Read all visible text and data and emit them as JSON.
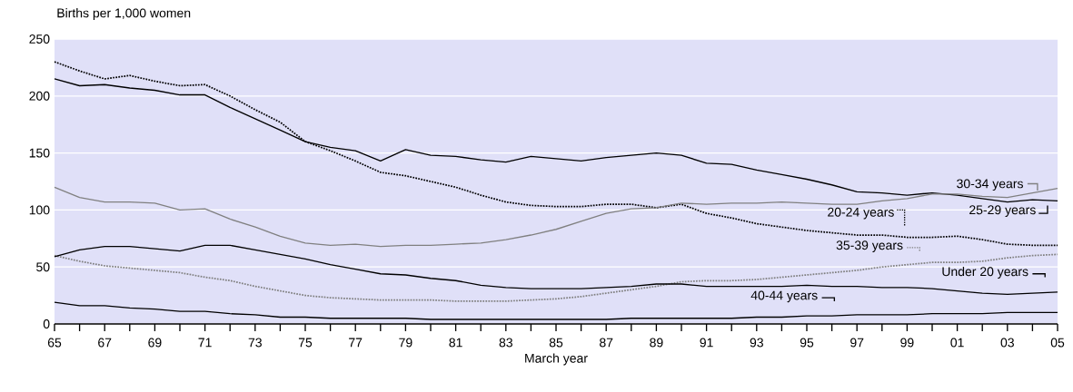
{
  "chart_data": {
    "type": "line",
    "ylabel": "Births per 1,000 women",
    "xlabel": "March year",
    "x": [
      1965,
      1966,
      1967,
      1968,
      1969,
      1970,
      1971,
      1972,
      1973,
      1974,
      1975,
      1976,
      1977,
      1978,
      1979,
      1980,
      1981,
      1982,
      1983,
      1984,
      1985,
      1986,
      1987,
      1988,
      1989,
      1990,
      1991,
      1992,
      1993,
      1994,
      1995,
      1996,
      1997,
      1998,
      1999,
      2000,
      2001,
      2002,
      2003,
      2004,
      2005
    ],
    "series": [
      {
        "name": "20-24 years",
        "color": "#000000",
        "line_style": "dotted",
        "values": [
          230,
          222,
          215,
          218,
          213,
          209,
          210,
          200,
          188,
          177,
          160,
          152,
          143,
          133,
          130,
          125,
          120,
          113,
          107,
          104,
          103,
          103,
          105,
          105,
          102,
          105,
          97,
          93,
          88,
          85,
          82,
          80,
          78,
          78,
          76,
          76,
          77,
          74,
          70,
          69,
          69
        ]
      },
      {
        "name": "25-29 years",
        "color": "#000000",
        "line_style": "solid",
        "values": [
          215,
          209,
          210,
          207,
          205,
          201,
          201,
          190,
          180,
          170,
          160,
          155,
          152,
          143,
          153,
          148,
          147,
          144,
          142,
          147,
          145,
          143,
          146,
          148,
          150,
          148,
          141,
          140,
          135,
          131,
          127,
          122,
          116,
          115,
          113,
          115,
          113,
          110,
          107,
          109,
          108
        ]
      },
      {
        "name": "30-34 years",
        "color": "#808080",
        "line_style": "solid",
        "values": [
          120,
          111,
          107,
          107,
          106,
          100,
          101,
          92,
          85,
          77,
          71,
          69,
          70,
          68,
          69,
          69,
          70,
          71,
          74,
          78,
          83,
          90,
          97,
          101,
          102,
          106,
          105,
          106,
          106,
          107,
          106,
          105,
          105,
          108,
          110,
          114,
          114,
          112,
          111,
          115,
          119
        ]
      },
      {
        "name": "35-39 years",
        "color": "#808080",
        "line_style": "dotted",
        "values": [
          60,
          55,
          51,
          49,
          47,
          45,
          41,
          38,
          33,
          29,
          25,
          23,
          22,
          21,
          21,
          21,
          20,
          20,
          20,
          21,
          22,
          24,
          27,
          30,
          33,
          37,
          38,
          38,
          39,
          41,
          43,
          45,
          47,
          50,
          52,
          54,
          54,
          55,
          58,
          60,
          61
        ]
      },
      {
        "name": "Under 20 years",
        "color": "#000000",
        "line_style": "solid",
        "values": [
          59,
          65,
          68,
          68,
          66,
          64,
          69,
          69,
          65,
          61,
          57,
          52,
          48,
          44,
          43,
          40,
          38,
          34,
          32,
          31,
          31,
          31,
          32,
          33,
          35,
          35,
          33,
          33,
          33,
          33,
          34,
          33,
          33,
          32,
          32,
          31,
          29,
          27,
          26,
          27,
          28
        ]
      },
      {
        "name": "40-44 years",
        "color": "#000000",
        "line_style": "solid",
        "values": [
          19,
          16,
          16,
          14,
          13,
          11,
          11,
          9,
          8,
          6,
          6,
          5,
          5,
          5,
          5,
          4,
          4,
          4,
          4,
          4,
          4,
          4,
          4,
          5,
          5,
          5,
          5,
          5,
          6,
          6,
          7,
          7,
          8,
          8,
          8,
          9,
          9,
          9,
          10,
          10,
          10
        ]
      }
    ],
    "xlim": [
      1965,
      2005
    ],
    "ylim": [
      0,
      250
    ],
    "yticks": [
      0,
      50,
      100,
      150,
      200,
      250
    ],
    "xticks": [
      {
        "value": 1965,
        "label": "65"
      },
      {
        "value": 1966,
        "label": null
      },
      {
        "value": 1967,
        "label": "67"
      },
      {
        "value": 1968,
        "label": null
      },
      {
        "value": 1969,
        "label": "69"
      },
      {
        "value": 1970,
        "label": null
      },
      {
        "value": 1971,
        "label": "71"
      },
      {
        "value": 1972,
        "label": null
      },
      {
        "value": 1973,
        "label": "73"
      },
      {
        "value": 1974,
        "label": null
      },
      {
        "value": 1975,
        "label": "75"
      },
      {
        "value": 1976,
        "label": null
      },
      {
        "value": 1977,
        "label": "77"
      },
      {
        "value": 1978,
        "label": null
      },
      {
        "value": 1979,
        "label": "79"
      },
      {
        "value": 1980,
        "label": null
      },
      {
        "value": 1981,
        "label": "81"
      },
      {
        "value": 1982,
        "label": null
      },
      {
        "value": 1983,
        "label": "83"
      },
      {
        "value": 1984,
        "label": null
      },
      {
        "value": 1985,
        "label": "85"
      },
      {
        "value": 1986,
        "label": null
      },
      {
        "value": 1987,
        "label": "87"
      },
      {
        "value": 1988,
        "label": null
      },
      {
        "value": 1989,
        "label": "89"
      },
      {
        "value": 1990,
        "label": null
      },
      {
        "value": 1991,
        "label": "91"
      },
      {
        "value": 1992,
        "label": null
      },
      {
        "value": 1993,
        "label": "93"
      },
      {
        "value": 1994,
        "label": null
      },
      {
        "value": 1995,
        "label": "95"
      },
      {
        "value": 1996,
        "label": null
      },
      {
        "value": 1997,
        "label": "97"
      },
      {
        "value": 1998,
        "label": null
      },
      {
        "value": 1999,
        "label": "99"
      },
      {
        "value": 2000,
        "label": null
      },
      {
        "value": 2001,
        "label": "01"
      },
      {
        "value": 2002,
        "label": null
      },
      {
        "value": 2003,
        "label": "03"
      },
      {
        "value": 2004,
        "label": null
      },
      {
        "value": 2005,
        "label": "05"
      }
    ],
    "grid": "y",
    "legend": "right"
  }
}
